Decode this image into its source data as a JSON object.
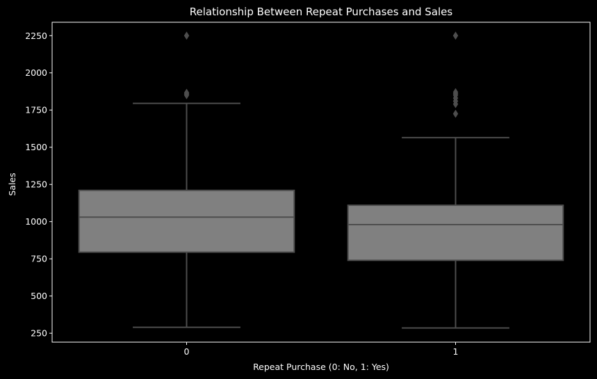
{
  "chart_data": {
    "type": "box",
    "title": "Relationship Between Repeat Purchases and Sales",
    "xlabel": "Repeat Purchase (0: No, 1: Yes)",
    "ylabel": "Sales",
    "categories": [
      "0",
      "1"
    ],
    "ylim": [
      190,
      2340
    ],
    "yticks": [
      250,
      500,
      750,
      1000,
      1250,
      1500,
      1750,
      2000,
      2250
    ],
    "grid": false,
    "boxes": [
      {
        "category": "0",
        "whisker_low": 290,
        "q1": 795,
        "median": 1030,
        "q3": 1210,
        "whisker_high": 1795,
        "outliers": [
          1850,
          1858,
          1866,
          2250
        ]
      },
      {
        "category": "1",
        "whisker_low": 285,
        "q1": 740,
        "median": 980,
        "q3": 1110,
        "whisker_high": 1565,
        "outliers": [
          1725,
          1790,
          1810,
          1830,
          1850,
          1860,
          1870,
          2250
        ]
      }
    ],
    "colors": {
      "background": "#000000",
      "box_fill": "#808080",
      "box_line": "#4d4d4d",
      "axis": "#ffffff",
      "text": "#ffffff"
    }
  }
}
